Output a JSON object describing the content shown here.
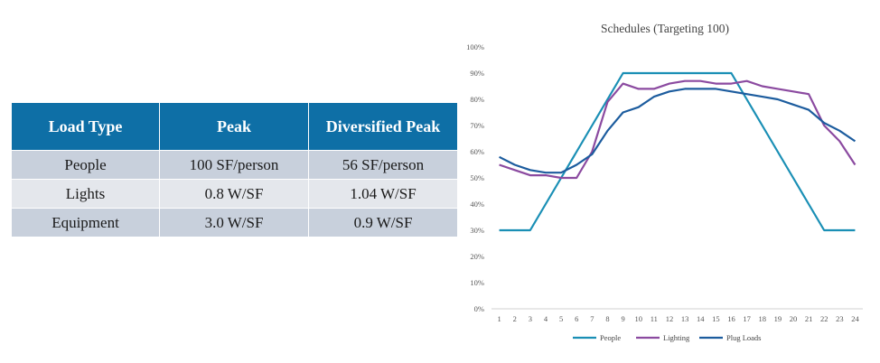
{
  "table": {
    "headers": [
      "Load Type",
      "Peak",
      "Diversified Peak"
    ],
    "rows": [
      [
        "People",
        "100 SF/person",
        "56 SF/person"
      ],
      [
        "Lights",
        "0.8 W/SF",
        "1.04 W/SF"
      ],
      [
        "Equipment",
        "3.0 W/SF",
        "0.9 W/SF"
      ]
    ],
    "header_color": "#0e6fa6",
    "row_colors": [
      "#c8d0dc",
      "#e4e7ec"
    ]
  },
  "chart_data": {
    "type": "line",
    "title": "Schedules (Targeting 100)",
    "xlabel": "",
    "ylabel": "",
    "x": [
      1,
      2,
      3,
      4,
      5,
      6,
      7,
      8,
      9,
      10,
      11,
      12,
      13,
      14,
      15,
      16,
      17,
      18,
      19,
      20,
      21,
      22,
      23,
      24
    ],
    "ylim": [
      0,
      100
    ],
    "yticks": [
      "0%",
      "10%",
      "20%",
      "30%",
      "40%",
      "50%",
      "60%",
      "70%",
      "80%",
      "90%",
      "100%"
    ],
    "grid": false,
    "legend": "bottom",
    "series": [
      {
        "name": "People",
        "color": "#1a8fb5",
        "values": [
          30,
          30,
          30,
          40,
          50,
          60,
          70,
          80,
          90,
          90,
          90,
          90,
          90,
          90,
          90,
          90,
          80,
          70,
          60,
          50,
          40,
          30,
          30,
          30
        ]
      },
      {
        "name": "Lighting",
        "color": "#8b4aa0",
        "values": [
          55,
          53,
          51,
          51,
          50,
          50,
          60,
          79,
          86,
          84,
          84,
          86,
          87,
          87,
          86,
          86,
          87,
          85,
          84,
          83,
          82,
          70,
          64,
          55
        ]
      },
      {
        "name": "Plug Loads",
        "color": "#1c5c9e",
        "values": [
          58,
          55,
          53,
          52,
          52,
          55,
          59,
          68,
          75,
          77,
          81,
          83,
          84,
          84,
          84,
          83,
          82,
          81,
          80,
          78,
          76,
          71,
          68,
          64
        ]
      }
    ]
  }
}
